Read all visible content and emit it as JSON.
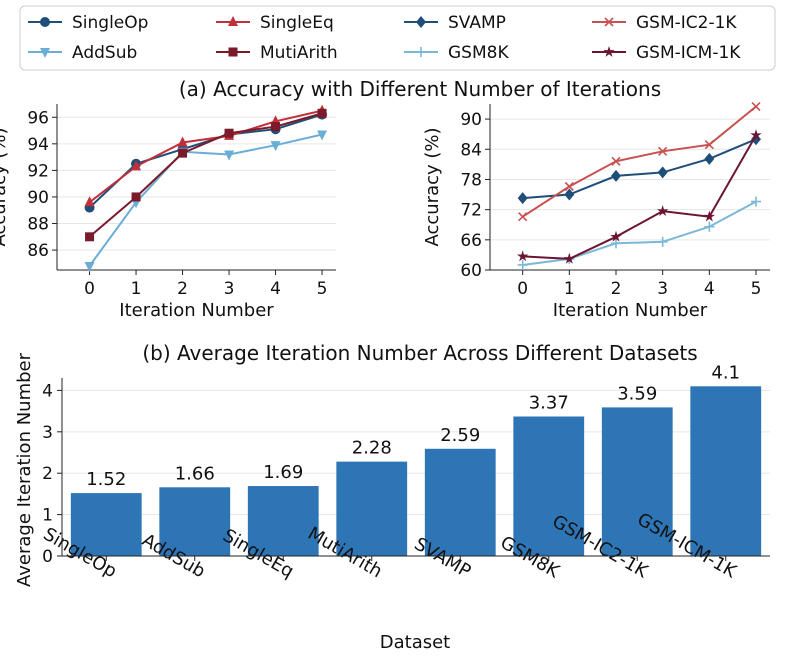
{
  "colors": {
    "SingleOp": "#1f4e79",
    "AddSub": "#6aaed6",
    "SingleEq": "#c0303a",
    "MutiArith": "#7a1a2a",
    "SVAMP": "#1f4e79",
    "GSM8K": "#7ab8d8",
    "GSM-IC2-1K": "#c85050",
    "GSM-ICM-1K": "#6b1530",
    "bar": "#2e75b6",
    "grid": "#e6e6e6"
  },
  "legend": [
    {
      "label": "SingleOp",
      "marker": "circle"
    },
    {
      "label": "SingleEq",
      "marker": "triangle"
    },
    {
      "label": "SVAMP",
      "marker": "diamond"
    },
    {
      "label": "GSM-IC2-1K",
      "marker": "x"
    },
    {
      "label": "AddSub",
      "marker": "triangle-down"
    },
    {
      "label": "MutiArith",
      "marker": "square"
    },
    {
      "label": "GSM8K",
      "marker": "plus"
    },
    {
      "label": "GSM-ICM-1K",
      "marker": "star"
    }
  ],
  "titles": {
    "a": "(a) Accuracy with Different Number of Iterations",
    "b": "(b) Average Iteration Number Across Different Datasets"
  },
  "chart_data": [
    {
      "type": "line",
      "title": "(a) Accuracy with Different Number of Iterations",
      "xlabel": "Iteration Number",
      "ylabel": "Accuracy (%)",
      "x": [
        0,
        1,
        2,
        3,
        4,
        5
      ],
      "ylim": [
        84.5,
        97
      ],
      "yticks": [
        86,
        88,
        90,
        92,
        94,
        96
      ],
      "grid": true,
      "series": [
        {
          "name": "SingleOp",
          "marker": "circle",
          "values": [
            89.2,
            92.5,
            93.6,
            94.7,
            95.1,
            96.2
          ]
        },
        {
          "name": "AddSub",
          "marker": "triangle-down",
          "values": [
            84.8,
            89.6,
            93.4,
            93.2,
            93.9,
            94.7
          ]
        },
        {
          "name": "SingleEq",
          "marker": "triangle",
          "values": [
            89.6,
            92.3,
            94.1,
            94.6,
            95.7,
            96.5
          ]
        },
        {
          "name": "MutiArith",
          "marker": "square",
          "values": [
            87.0,
            90.0,
            93.3,
            94.8,
            95.3,
            96.3
          ]
        }
      ]
    },
    {
      "type": "line",
      "xlabel": "Iteration Number",
      "ylabel": "Accuracy (%)",
      "x": [
        0,
        1,
        2,
        3,
        4,
        5
      ],
      "ylim": [
        60,
        93
      ],
      "yticks": [
        60,
        66,
        72,
        78,
        84,
        90
      ],
      "grid": true,
      "series": [
        {
          "name": "SVAMP",
          "marker": "diamond",
          "values": [
            74.3,
            75.0,
            78.7,
            79.4,
            82.1,
            86.0
          ]
        },
        {
          "name": "GSM8K",
          "marker": "plus",
          "values": [
            61.0,
            62.2,
            65.3,
            65.6,
            68.6,
            73.6
          ]
        },
        {
          "name": "GSM-IC2-1K",
          "marker": "x",
          "values": [
            70.6,
            76.6,
            81.6,
            83.6,
            84.9,
            92.5
          ]
        },
        {
          "name": "GSM-ICM-1K",
          "marker": "star",
          "values": [
            62.7,
            62.2,
            66.6,
            71.7,
            70.6,
            86.8
          ]
        }
      ]
    },
    {
      "type": "bar",
      "title": "(b) Average Iteration Number Across Different Datasets",
      "xlabel": "Dataset",
      "ylabel": "Average Iteration Number",
      "categories": [
        "SingleOp",
        "AddSub",
        "SingleEq",
        "MutiArith",
        "SVAMP",
        "GSM8K",
        "GSM-IC2-1K",
        "GSM-ICM-1K"
      ],
      "values": [
        1.52,
        1.66,
        1.69,
        2.28,
        2.59,
        3.37,
        3.59,
        4.1
      ],
      "value_labels": [
        "1.52",
        "1.66",
        "1.69",
        "2.28",
        "2.59",
        "3.37",
        "3.59",
        "4.1"
      ],
      "ylim": [
        0,
        4.3
      ],
      "yticks": [
        0,
        1,
        2,
        3,
        4
      ],
      "grid": true
    }
  ]
}
